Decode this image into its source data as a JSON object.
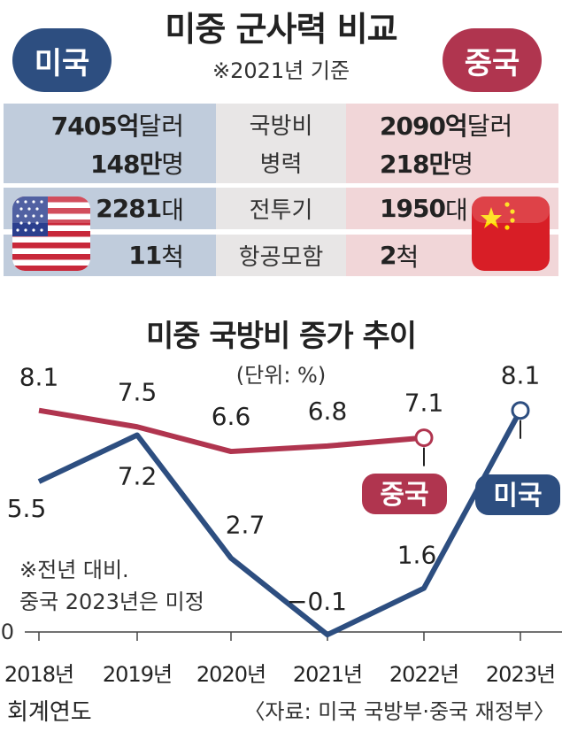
{
  "header": {
    "title": "미중 군사력 비교",
    "basis": "※2021년 기준",
    "us_label": "미국",
    "cn_label": "중국"
  },
  "comparison": [
    {
      "metric": "국방비",
      "us_value": "7405억",
      "us_unit": "달러",
      "cn_value": "2090억",
      "cn_unit": "달러"
    },
    {
      "metric": "병력",
      "us_value": "148만",
      "us_unit": "명",
      "cn_value": "218만",
      "cn_unit": "명"
    },
    {
      "metric": "전투기",
      "us_value": "2281",
      "us_unit": "대",
      "cn_value": "1950",
      "cn_unit": "대"
    },
    {
      "metric": "항공모함",
      "us_value": "11",
      "us_unit": "척",
      "cn_value": "2",
      "cn_unit": "척"
    }
  ],
  "colors": {
    "us": "#2d4e80",
    "cn": "#b0354f",
    "us_row": "#c0ccdc",
    "cn_row": "#f1d6d8"
  },
  "icons": {
    "us_flag": "us-flag-icon",
    "cn_flag": "china-flag-icon"
  },
  "chart_data": {
    "type": "line",
    "title": "미중 국방비 증가 추이",
    "unit_label": "(단위: %)",
    "categories": [
      "2018년",
      "2019년",
      "2020년",
      "2021년",
      "2022년",
      "2023년"
    ],
    "series": [
      {
        "name": "중국",
        "values": [
          8.1,
          7.5,
          6.6,
          6.8,
          7.1,
          null
        ],
        "labels": [
          "8.1",
          "7.5",
          "6.6",
          "6.8",
          "7.1",
          ""
        ]
      },
      {
        "name": "미국",
        "values": [
          5.5,
          7.2,
          2.7,
          -0.1,
          1.6,
          8.1
        ],
        "labels": [
          "5.5",
          "7.2",
          "2.7",
          "−0.1",
          "1.6",
          "8.1"
        ]
      }
    ],
    "y_zero_label": "0",
    "ylim": [
      -0.1,
      9.5
    ],
    "xlabel": "회계연도",
    "grid": false,
    "notes": [
      "※전년 대비.",
      "중국 2023년은 미정"
    ],
    "source": "〈자료: 미국 국방부·중국 재정부〉"
  }
}
